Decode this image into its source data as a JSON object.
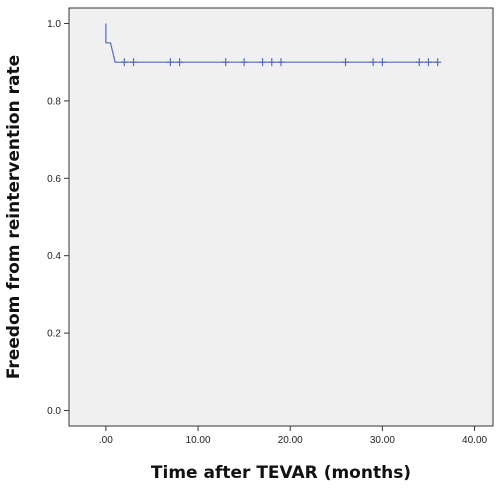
{
  "chart_data": {
    "type": "line",
    "title": "",
    "xlabel": "Time after TEVAR (months)",
    "ylabel": "Freedom from reintervention  rate",
    "xlim": [
      -4,
      42
    ],
    "ylim": [
      -0.04,
      1.04
    ],
    "x_ticks": [
      0,
      10,
      20,
      30,
      40
    ],
    "x_tick_labels": [
      ".00",
      "10.00",
      "20.00",
      "30.00",
      "40.00"
    ],
    "y_ticks": [
      0.0,
      0.2,
      0.4,
      0.6,
      0.8,
      1.0
    ],
    "y_tick_labels": [
      "0.0",
      "0.2",
      "0.4",
      "0.6",
      "0.8",
      "1.0"
    ],
    "grid": false,
    "legend": "none",
    "colors": {
      "plot_background": "#f0f0f0",
      "line": "#4f6fb8",
      "axis": "#333333"
    },
    "series": [
      {
        "step_curve": {
          "x": [
            0,
            0,
            0.5,
            1,
            36
          ],
          "y": [
            1.0,
            0.95,
            0.95,
            0.9,
            0.9
          ]
        },
        "censored": {
          "x": [
            2,
            3,
            7,
            8,
            13,
            15,
            17,
            18,
            19,
            26,
            29,
            30,
            34,
            35,
            36
          ],
          "y": [
            0.9,
            0.9,
            0.9,
            0.9,
            0.9,
            0.9,
            0.9,
            0.9,
            0.9,
            0.9,
            0.9,
            0.9,
            0.9,
            0.9,
            0.9
          ]
        }
      }
    ]
  }
}
